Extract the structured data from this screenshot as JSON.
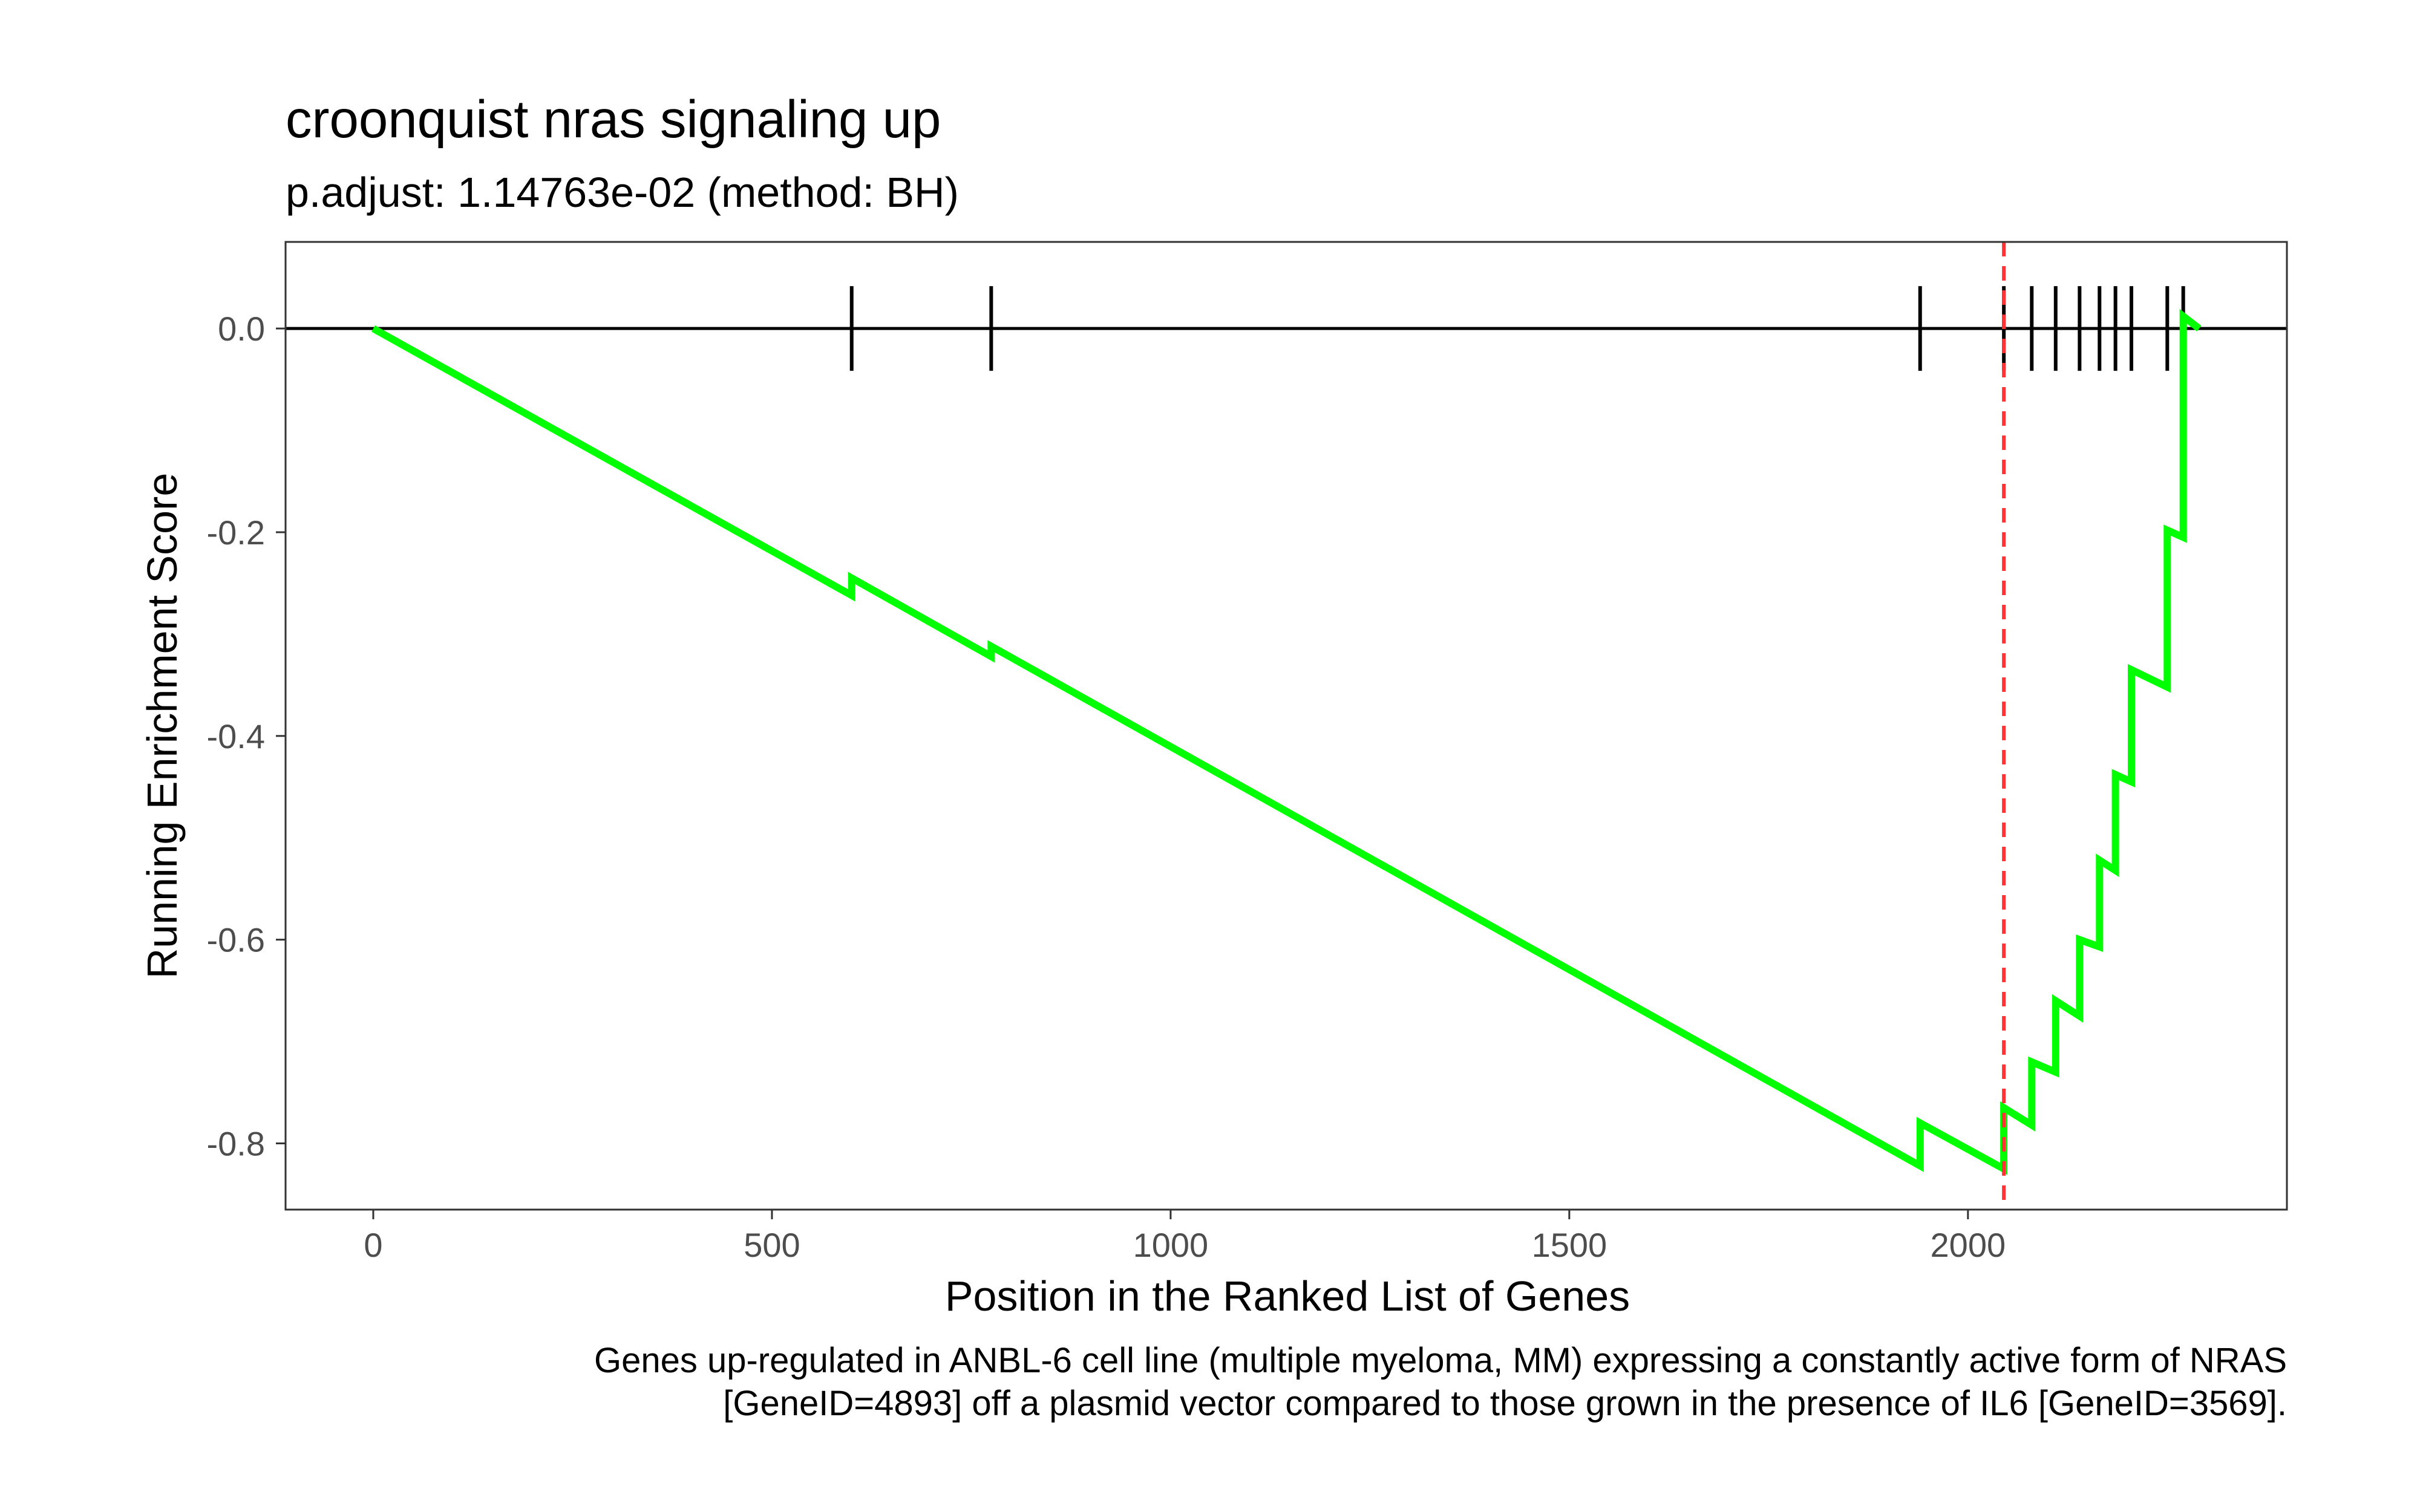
{
  "chart_data": {
    "type": "line",
    "title": "croonquist nras signaling up",
    "subtitle": "p.adjust: 1.14763e-02 (method: BH)",
    "xlabel": "Position in the Ranked List of Genes",
    "ylabel": "Running Enrichment Score",
    "caption": [
      "Genes up-regulated in ANBL-6 cell line (multiple myeloma, MM) expressing a constantly active form of NRAS",
      "[GeneID=4893] off a plasmid vector compared to those grown in the presence of IL6 [GeneID=3569]."
    ],
    "xlim": [
      -110,
      2400
    ],
    "ylim": [
      -0.865,
      0.085
    ],
    "x_ticks": [
      0,
      500,
      1000,
      1500,
      2000
    ],
    "x_tick_labels": [
      "0",
      "500",
      "1000",
      "1500",
      "2000"
    ],
    "y_ticks": [
      0.0,
      -0.2,
      -0.4,
      -0.6,
      -0.8
    ],
    "y_tick_labels": [
      "0.0",
      "-0.2",
      "-0.4",
      "-0.6",
      "-0.8"
    ],
    "grid": false,
    "series": [
      {
        "color": "#00ff00",
        "x": [
          0,
          600,
          600,
          775,
          775,
          1940,
          1940,
          2045,
          2045,
          2080,
          2080,
          2110,
          2110,
          2140,
          2140,
          2165,
          2165,
          2185,
          2185,
          2205,
          2205,
          2250,
          2250,
          2270,
          2270,
          2290
        ],
        "y": [
          0.0,
          -0.262,
          -0.245,
          -0.322,
          -0.312,
          -0.822,
          -0.78,
          -0.825,
          -0.765,
          -0.782,
          -0.72,
          -0.73,
          -0.66,
          -0.675,
          -0.6,
          -0.607,
          -0.522,
          -0.532,
          -0.438,
          -0.445,
          -0.335,
          -0.352,
          -0.198,
          -0.205,
          0.012,
          0.0
        ]
      }
    ],
    "hits": [
      600,
      775,
      1940,
      2045,
      2080,
      2110,
      2140,
      2165,
      2185,
      2205,
      2250,
      2270
    ],
    "max_deviation_x": 2045,
    "colors": {
      "line": "#00ff00",
      "max_line": "#ff3333",
      "hits": "#000000",
      "zero_line": "#000000"
    }
  }
}
